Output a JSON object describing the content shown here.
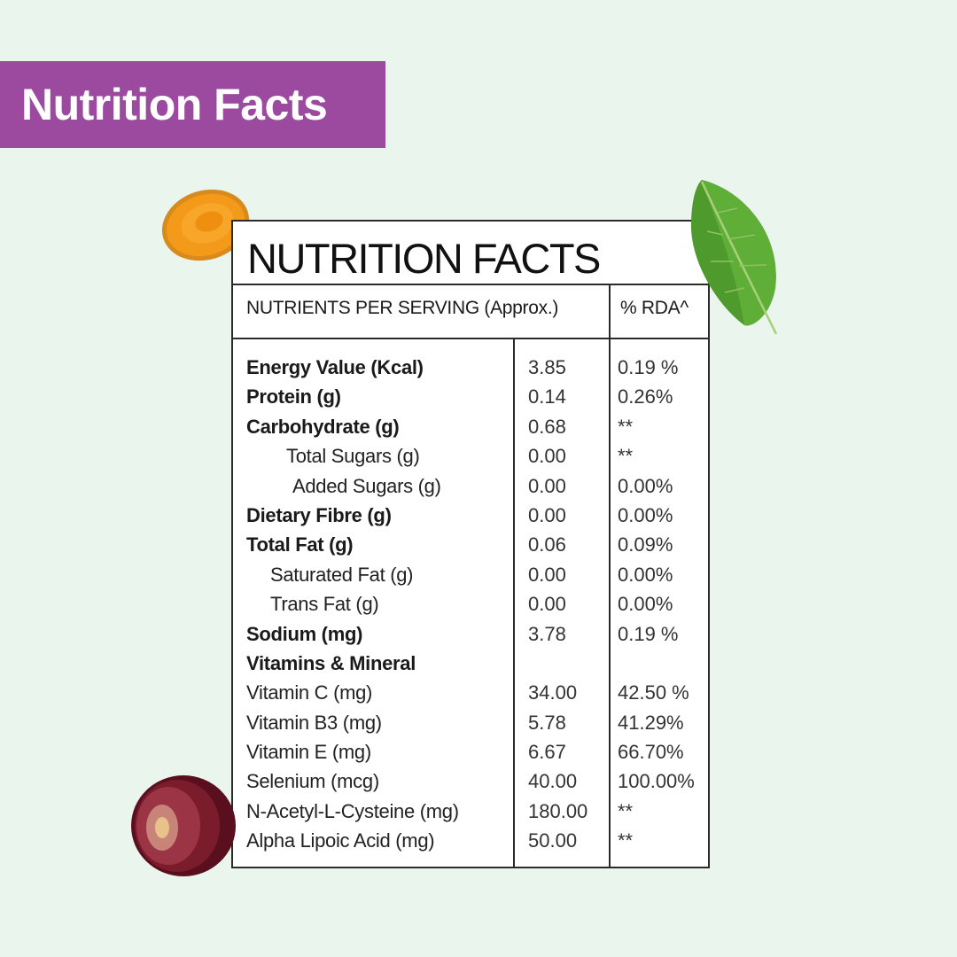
{
  "banner": {
    "title": "Nutrition Facts",
    "bg_color": "#9b4a9f"
  },
  "panel": {
    "title": "NUTRITION FACTS",
    "header_nutrients": "NUTRIENTS PER SERVING (Approx.)",
    "header_rda": "% RDA^"
  },
  "rows": [
    {
      "name": "Energy Value (Kcal)",
      "value": "3.85",
      "rda": "0.19 %",
      "style": "bold"
    },
    {
      "name": "Protein (g)",
      "value": "0.14",
      "rda": "0.26%",
      "style": "bold"
    },
    {
      "name": "Carbohydrate (g)",
      "value": "0.68",
      "rda": "**",
      "style": "bold"
    },
    {
      "name": "Total Sugars (g)",
      "value": "0.00",
      "rda": "**",
      "style": "l2"
    },
    {
      "name": "Added Sugars (g)",
      "value": "0.00",
      "rda": "0.00%",
      "style": "l3"
    },
    {
      "name": "Dietary Fibre (g)",
      "value": "0.00",
      "rda": "0.00%",
      "style": "bold"
    },
    {
      "name": "Total Fat (g)",
      "value": "0.06",
      "rda": "0.09%",
      "style": "bold"
    },
    {
      "name": "Saturated Fat (g)",
      "value": "0.00",
      "rda": "0.00%",
      "style": "l1"
    },
    {
      "name": "Trans Fat (g)",
      "value": "0.00",
      "rda": "0.00%",
      "style": "l1"
    },
    {
      "name": "Sodium (mg)",
      "value": "3.78",
      "rda": "0.19 %",
      "style": "bold"
    },
    {
      "name": "Vitamins & Mineral",
      "value": "",
      "rda": "",
      "style": "bold"
    },
    {
      "name": "Vitamin C (mg)",
      "value": "34.00",
      "rda": "42.50 %",
      "style": "normal"
    },
    {
      "name": "Vitamin B3 (mg)",
      "value": "5.78",
      "rda": "41.29%",
      "style": "normal"
    },
    {
      "name": "Vitamin E (mg)",
      "value": "6.67",
      "rda": "66.70%",
      "style": "normal"
    },
    {
      "name": "Selenium (mcg)",
      "value": "40.00",
      "rda": "100.00%",
      "style": "normal"
    },
    {
      "name": "N-Acetyl-L-Cysteine (mg)",
      "value": "180.00",
      "rda": "**",
      "style": "normal"
    },
    {
      "name": "Alpha Lipoic Acid  (mg)",
      "value": "50.00",
      "rda": "**",
      "style": "normal"
    }
  ],
  "decorations": {
    "turmeric": "turmeric-slice-icon",
    "basil": "basil-leaf-icon",
    "grape": "grape-half-icon"
  }
}
